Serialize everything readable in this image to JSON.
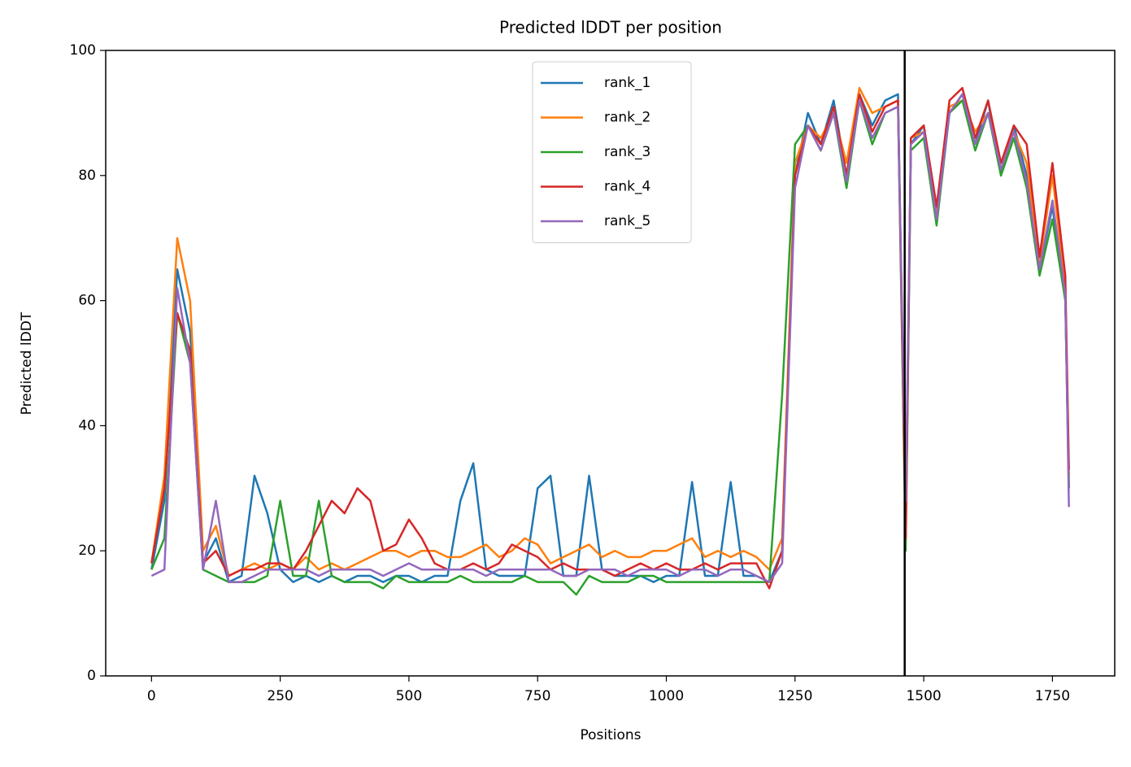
{
  "chart_data": {
    "type": "line",
    "title": "Predicted lDDT per position",
    "x_label": "Positions",
    "y_label": "Predicted lDDT",
    "x": [
      0,
      25,
      50,
      75,
      100,
      125,
      150,
      175,
      200,
      225,
      250,
      275,
      300,
      325,
      350,
      375,
      400,
      425,
      450,
      475,
      500,
      525,
      550,
      575,
      600,
      625,
      650,
      675,
      700,
      725,
      750,
      775,
      800,
      825,
      850,
      875,
      900,
      925,
      950,
      975,
      1000,
      1025,
      1050,
      1075,
      1100,
      1125,
      1150,
      1175,
      1200,
      1225,
      1250,
      1275,
      1300,
      1325,
      1350,
      1375,
      1400,
      1425,
      1450,
      1465,
      1475,
      1500,
      1525,
      1550,
      1575,
      1600,
      1625,
      1650,
      1675,
      1700,
      1725,
      1750,
      1775,
      1782
    ],
    "series": [
      {
        "name": "rank_1",
        "color": "#1f77b4",
        "values": [
          17,
          28,
          65,
          55,
          18,
          22,
          15,
          16,
          32,
          26,
          17,
          15,
          16,
          15,
          16,
          15,
          16,
          16,
          15,
          16,
          16,
          15,
          16,
          16,
          28,
          34,
          17,
          16,
          16,
          16,
          30,
          32,
          16,
          16,
          32,
          17,
          16,
          16,
          16,
          15,
          16,
          16,
          31,
          16,
          16,
          31,
          16,
          16,
          15,
          20,
          80,
          90,
          85,
          92,
          80,
          93,
          88,
          92,
          93,
          22,
          85,
          88,
          75,
          90,
          93,
          85,
          92,
          80,
          88,
          80,
          65,
          75,
          60,
          30
        ]
      },
      {
        "name": "rank_2",
        "color": "#ff7f0e",
        "values": [
          18,
          32,
          70,
          60,
          20,
          24,
          16,
          17,
          18,
          17,
          18,
          17,
          19,
          17,
          18,
          17,
          18,
          19,
          20,
          20,
          19,
          20,
          20,
          19,
          19,
          20,
          21,
          19,
          20,
          22,
          21,
          18,
          19,
          20,
          21,
          19,
          20,
          19,
          19,
          20,
          20,
          21,
          22,
          19,
          20,
          19,
          20,
          19,
          17,
          22,
          82,
          88,
          86,
          90,
          82,
          94,
          90,
          91,
          92,
          25,
          86,
          87,
          74,
          91,
          92,
          87,
          90,
          82,
          87,
          82,
          66,
          80,
          62,
          32
        ]
      },
      {
        "name": "rank_3",
        "color": "#2ca02c",
        "values": [
          17,
          22,
          58,
          50,
          17,
          16,
          15,
          15,
          15,
          16,
          28,
          16,
          16,
          28,
          16,
          15,
          15,
          15,
          14,
          16,
          15,
          15,
          15,
          15,
          16,
          15,
          15,
          15,
          15,
          16,
          15,
          15,
          15,
          13,
          16,
          15,
          15,
          15,
          16,
          16,
          15,
          15,
          15,
          15,
          15,
          15,
          15,
          15,
          15,
          45,
          85,
          88,
          84,
          90,
          78,
          92,
          85,
          90,
          91,
          20,
          84,
          86,
          72,
          90,
          92,
          84,
          90,
          80,
          86,
          78,
          64,
          73,
          60,
          30
        ]
      },
      {
        "name": "rank_4",
        "color": "#d62728",
        "values": [
          18,
          30,
          58,
          52,
          18,
          20,
          16,
          17,
          17,
          18,
          18,
          17,
          20,
          24,
          28,
          26,
          30,
          28,
          20,
          21,
          25,
          22,
          18,
          17,
          17,
          18,
          17,
          18,
          21,
          20,
          19,
          17,
          18,
          17,
          17,
          17,
          16,
          17,
          18,
          17,
          18,
          17,
          17,
          18,
          17,
          18,
          18,
          18,
          14,
          20,
          80,
          88,
          85,
          91,
          80,
          93,
          87,
          91,
          92,
          22,
          86,
          88,
          75,
          92,
          94,
          86,
          92,
          82,
          88,
          85,
          67,
          82,
          64,
          33
        ]
      },
      {
        "name": "rank_5",
        "color": "#9467bd",
        "values": [
          16,
          17,
          62,
          50,
          17,
          28,
          15,
          15,
          16,
          17,
          17,
          17,
          17,
          16,
          17,
          17,
          17,
          17,
          16,
          17,
          18,
          17,
          17,
          17,
          17,
          17,
          16,
          17,
          17,
          17,
          17,
          17,
          16,
          16,
          17,
          17,
          17,
          16,
          17,
          17,
          17,
          16,
          17,
          17,
          16,
          17,
          17,
          16,
          15,
          18,
          78,
          88,
          84,
          90,
          79,
          92,
          86,
          90,
          91,
          28,
          85,
          87,
          73,
          90,
          93,
          85,
          90,
          81,
          87,
          79,
          65,
          76,
          61,
          27
        ]
      }
    ],
    "vline": 1463,
    "xlim": [
      -89,
      1871
    ],
    "xticks": [
      0,
      250,
      500,
      750,
      1000,
      1250,
      1500,
      1750
    ],
    "ylim": [
      0,
      100
    ],
    "yticks": [
      0,
      20,
      40,
      60,
      80,
      100
    ],
    "legend": "upper center"
  }
}
